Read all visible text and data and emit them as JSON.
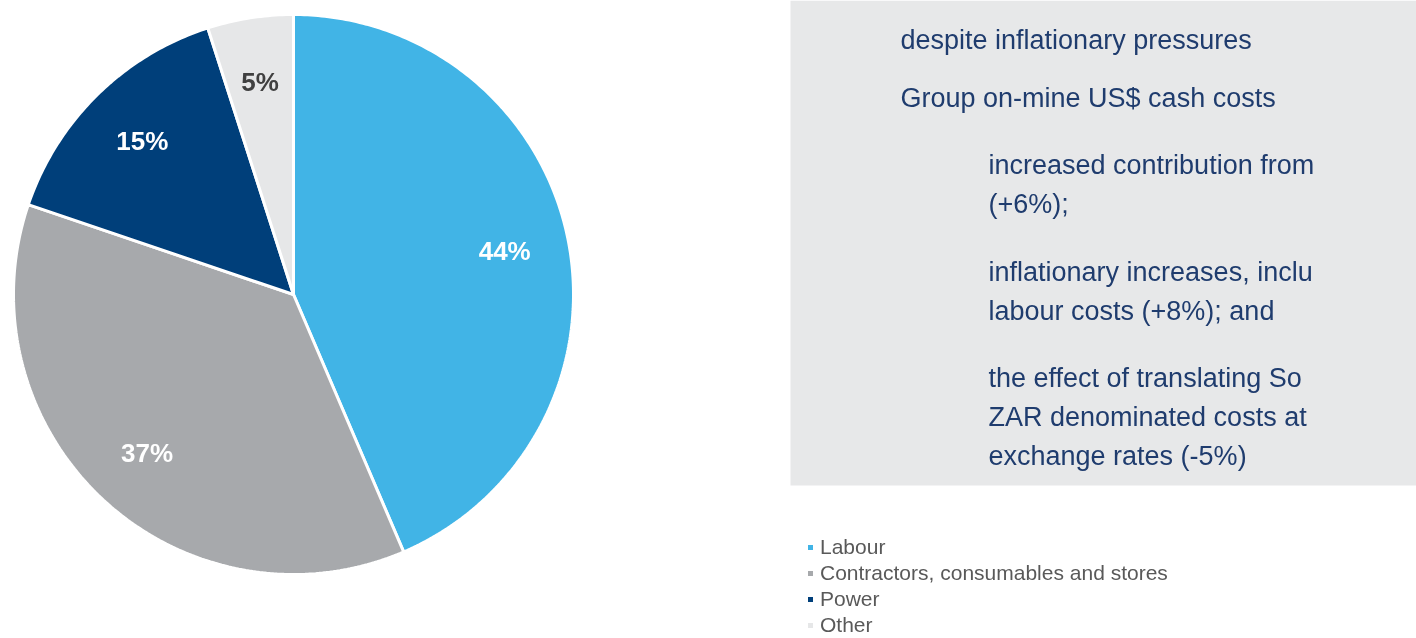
{
  "chart_data": {
    "type": "pie",
    "categories": [
      "Labour",
      "Contractors, consumables and stores",
      "Power",
      "Other"
    ],
    "values": [
      44,
      37,
      15,
      5
    ],
    "colors": [
      "#41b4e6",
      "#a7a9ac",
      "#003f7a",
      "#e6e7e8"
    ],
    "value_labels": [
      "44%",
      "37%",
      "15%",
      "5%"
    ],
    "legend": "bottom right",
    "annotations": [
      "despite inflationary pressures",
      "Group on-mine US$ cash costs",
      "increased contribution from\n(+6%);",
      "inflationary increases, inclu\nlabour costs (+8%); and",
      "the effect of translating So\nZAR denominated costs at\nexchange rates (-5%)"
    ]
  }
}
